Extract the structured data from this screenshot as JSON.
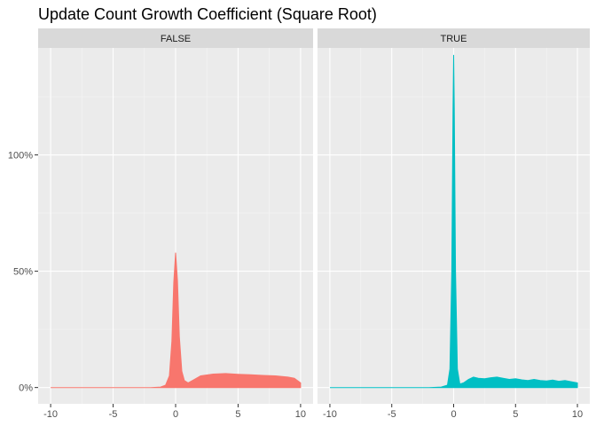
{
  "chart_data": {
    "type": "area",
    "title": "Update Count Growth Coefficient (Square Root)",
    "xlabel": "",
    "ylabel": "",
    "xlim": [
      -11,
      11
    ],
    "ylim": [
      -0.07,
      1.46
    ],
    "x_ticks": [
      -10,
      -5,
      0,
      5,
      10
    ],
    "x_tick_labels": [
      "-10",
      "-5",
      "0",
      "5",
      "10"
    ],
    "y_ticks": [
      0,
      0.5,
      1.0
    ],
    "y_tick_labels": [
      "0%",
      "50%",
      "100%"
    ],
    "grid": true,
    "legend": "none",
    "panels": [
      {
        "label": "FALSE",
        "color": "#F8766D",
        "x": [
          -10,
          -8,
          -6,
          -4,
          -2,
          -1.2,
          -0.8,
          -0.5,
          -0.3,
          -0.15,
          0,
          0.15,
          0.3,
          0.5,
          0.7,
          1,
          1.5,
          2,
          3,
          4,
          5,
          6,
          7,
          8,
          9,
          9.5,
          10
        ],
        "y": [
          0,
          0,
          0,
          0,
          0,
          0.002,
          0.01,
          0.05,
          0.2,
          0.45,
          0.58,
          0.46,
          0.22,
          0.07,
          0.03,
          0.02,
          0.035,
          0.05,
          0.058,
          0.06,
          0.057,
          0.055,
          0.052,
          0.05,
          0.045,
          0.04,
          0.02
        ]
      },
      {
        "label": "TRUE",
        "color": "#00BFC4",
        "x": [
          -10,
          -8,
          -6,
          -4,
          -2,
          -1,
          -0.5,
          -0.3,
          -0.15,
          -0.05,
          0,
          0.05,
          0.15,
          0.3,
          0.5,
          0.8,
          1.2,
          1.6,
          2,
          2.5,
          3,
          3.5,
          4,
          4.5,
          5,
          5.5,
          6,
          6.5,
          7,
          7.5,
          8,
          8.5,
          9,
          9.5,
          10
        ],
        "y": [
          0,
          0,
          0,
          0,
          0,
          0.002,
          0.01,
          0.08,
          0.5,
          1.2,
          1.43,
          1.2,
          0.5,
          0.08,
          0.015,
          0.02,
          0.035,
          0.045,
          0.04,
          0.038,
          0.042,
          0.045,
          0.04,
          0.035,
          0.038,
          0.033,
          0.03,
          0.035,
          0.03,
          0.028,
          0.032,
          0.027,
          0.03,
          0.025,
          0.02
        ]
      }
    ]
  }
}
